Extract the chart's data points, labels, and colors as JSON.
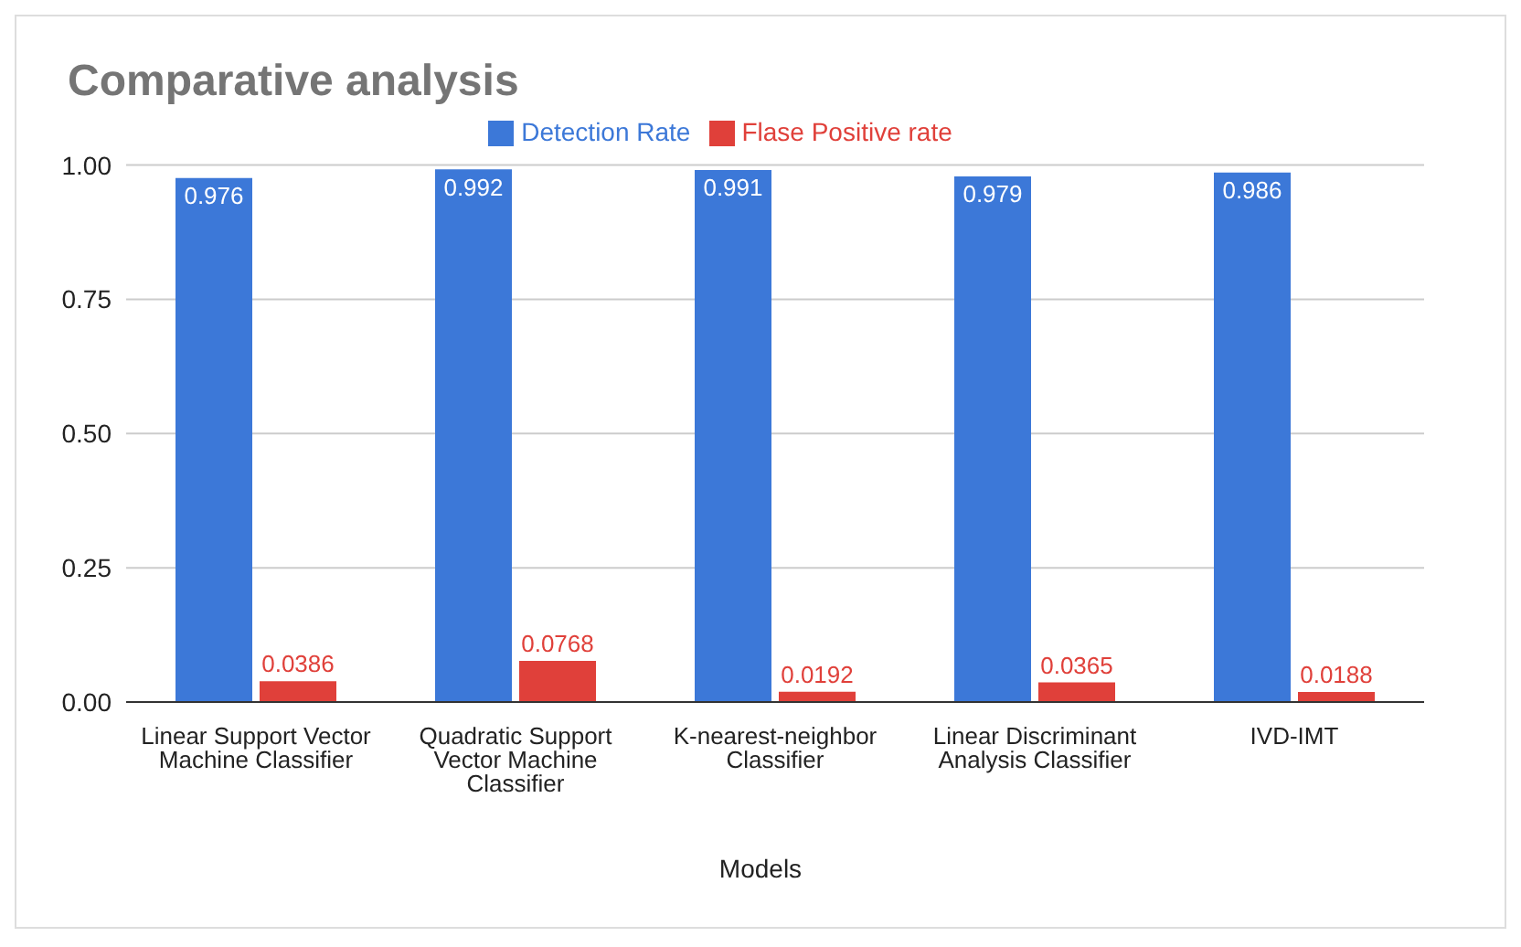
{
  "chart_data": {
    "type": "bar",
    "title": "Comparative analysis",
    "xlabel": "Models",
    "categories": [
      "Linear Support Vector Machine Classifier",
      "Quadratic Support Vector Machine Classifier",
      "K-nearest-neighbor Classifier",
      "Linear Discriminant Analysis Classifier",
      "IVD-IMT"
    ],
    "series": [
      {
        "name": "Detection Rate",
        "color": "#3c78d8",
        "values": [
          0.976,
          0.992,
          0.991,
          0.979,
          0.986
        ]
      },
      {
        "name": "Flase Positive rate",
        "color": "#e0403a",
        "values": [
          0.0386,
          0.0768,
          0.0192,
          0.0365,
          0.0188
        ]
      }
    ],
    "ylim": [
      0,
      1
    ],
    "yticks": [
      {
        "value": 0,
        "label": "0.00"
      },
      {
        "value": 0.25,
        "label": "0.25"
      },
      {
        "value": 0.5,
        "label": "0.50"
      },
      {
        "value": 0.75,
        "label": "0.75"
      },
      {
        "value": 1,
        "label": "1.00"
      }
    ],
    "grid": "y",
    "legend": "top",
    "data_labels": true
  }
}
